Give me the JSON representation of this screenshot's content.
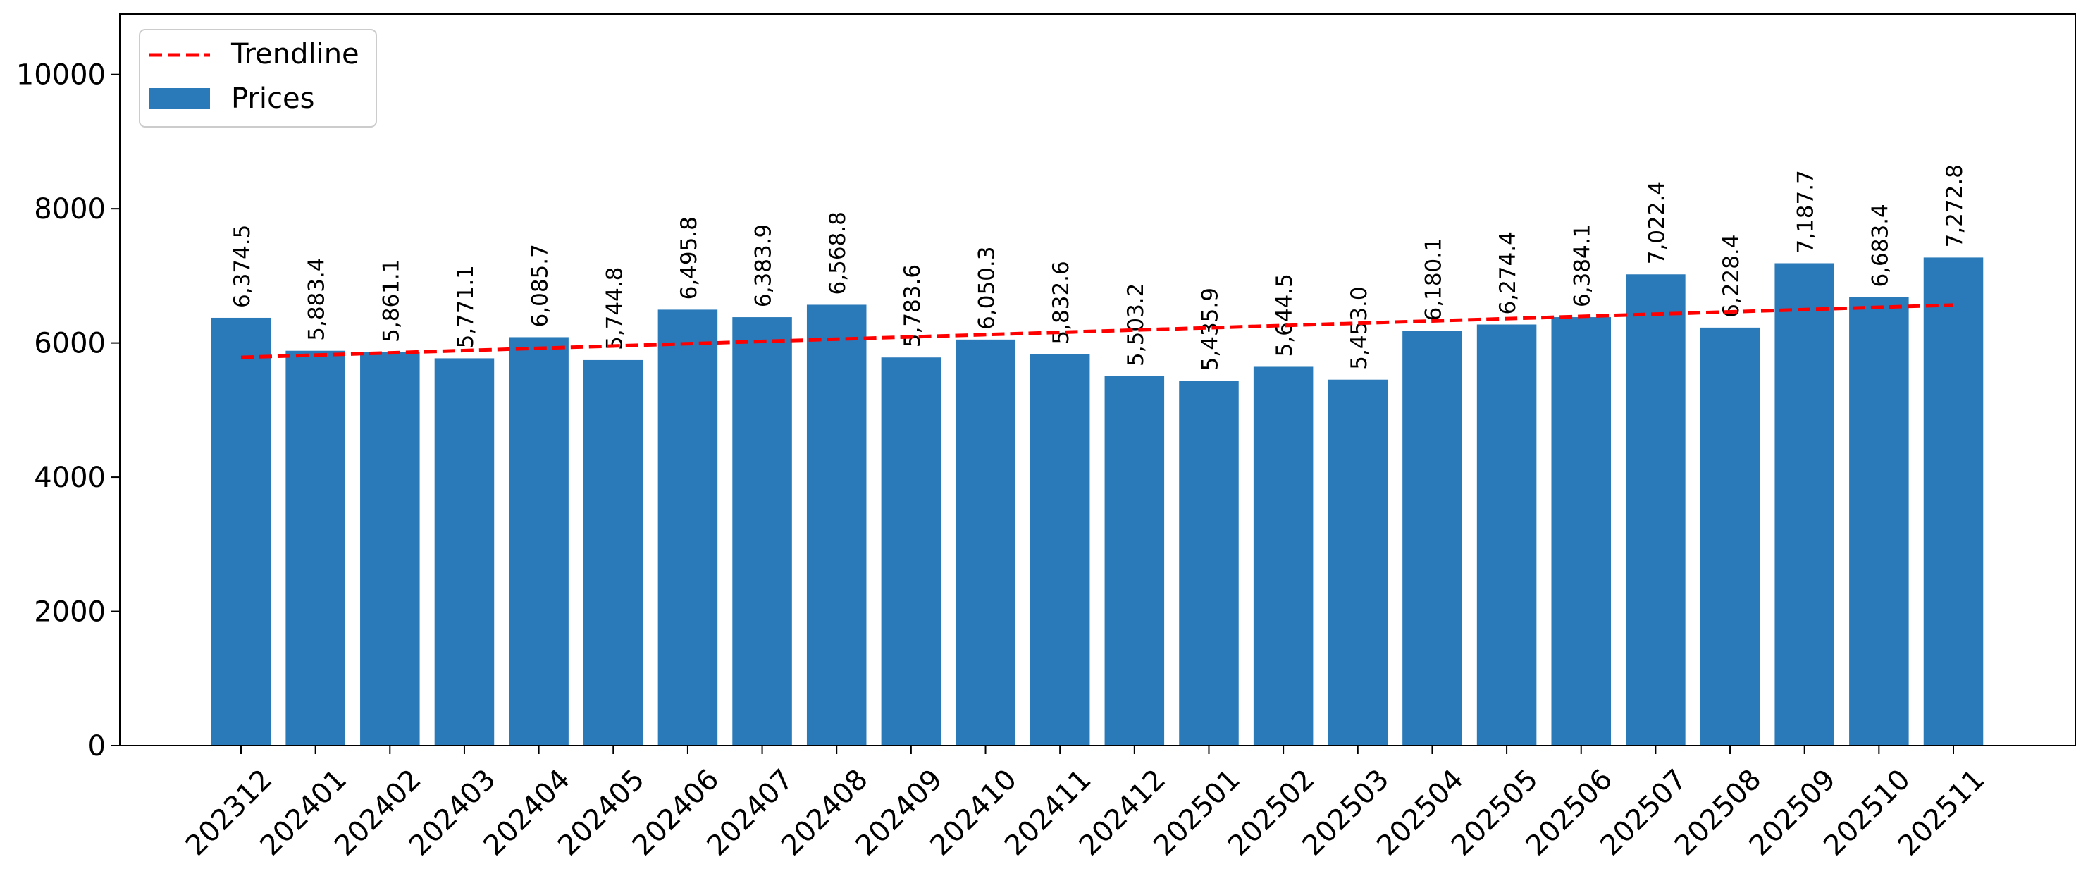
{
  "chart_data": {
    "type": "bar",
    "title": "",
    "xlabel": "",
    "ylabel": "",
    "ylim": [
      0,
      10900
    ],
    "y_ticks": [
      0,
      2000,
      4000,
      6000,
      8000,
      10000
    ],
    "grid": false,
    "legend_placement": "top-left",
    "legend": [
      {
        "label": "Trendline",
        "style": "dashed-line",
        "color": "#ff0000"
      },
      {
        "label": "Prices",
        "style": "patch",
        "color": "#2a7ab9"
      }
    ],
    "categories": [
      "202312",
      "202401",
      "202402",
      "202403",
      "202404",
      "202405",
      "202406",
      "202407",
      "202408",
      "202409",
      "202410",
      "202411",
      "202412",
      "202501",
      "202502",
      "202503",
      "202504",
      "202505",
      "202506",
      "202507",
      "202508",
      "202509",
      "202510",
      "202511"
    ],
    "series": [
      {
        "name": "Prices",
        "color": "#2a7ab9",
        "values": [
          6374.5,
          5883.4,
          5861.1,
          5771.1,
          6085.7,
          5744.8,
          6495.8,
          6383.9,
          6568.8,
          5783.6,
          6050.3,
          5832.6,
          5503.2,
          5435.9,
          5644.5,
          5453.0,
          6180.1,
          6274.4,
          6384.1,
          7022.4,
          6228.4,
          7187.7,
          6683.4,
          7272.8
        ],
        "labels": [
          "6,374.5",
          "5,883.4",
          "5,861.1",
          "5,771.1",
          "6,085.7",
          "5,744.8",
          "6,495.8",
          "6,383.9",
          "6,568.8",
          "5,783.6",
          "6,050.3",
          "5,832.6",
          "5,503.2",
          "5,435.9",
          "5,644.5",
          "5,453.0",
          "6,180.1",
          "6,274.4",
          "6,384.1",
          "7,022.4",
          "6,228.4",
          "7,187.7",
          "6,683.4",
          "7,272.8"
        ]
      }
    ],
    "trendline": {
      "name": "Trendline",
      "color": "#ff0000",
      "start_value": 5785,
      "end_value": 6565
    }
  }
}
